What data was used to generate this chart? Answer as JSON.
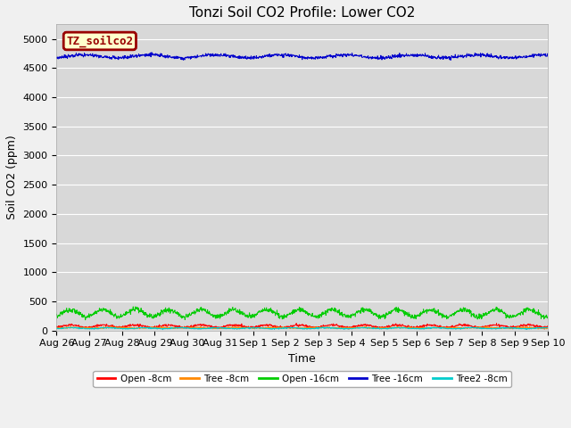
{
  "title": "Tonzi Soil CO2 Profile: Lower CO2",
  "xlabel": "Time",
  "ylabel": "Soil CO2 (ppm)",
  "ylim": [
    0,
    5250
  ],
  "yticks": [
    0,
    500,
    1000,
    1500,
    2000,
    2500,
    3000,
    3500,
    4000,
    4500,
    5000
  ],
  "background_color": "#f0f0f0",
  "plot_bg_color": "#d8d8d8",
  "legend_label": "TZ_soilco2",
  "legend_bg": "#ffffcc",
  "legend_border": "#990000",
  "series": {
    "open_8cm": {
      "label": "Open -8cm",
      "color": "#ff0000"
    },
    "tree_8cm": {
      "label": "Tree -8cm",
      "color": "#ff8800"
    },
    "open_16cm": {
      "label": "Open -16cm",
      "color": "#00cc00"
    },
    "tree_16cm": {
      "label": "Tree -16cm",
      "color": "#0000cc"
    },
    "tree2_8cm": {
      "label": "Tree2 -8cm",
      "color": "#00cccc"
    }
  },
  "xtick_labels": [
    "Aug 26",
    "Aug 27",
    "Aug 28",
    "Aug 29",
    "Aug 30",
    "Aug 31",
    "Sep 1",
    "Sep 2",
    "Sep 3",
    "Sep 4",
    "Sep 5",
    "Sep 6",
    "Sep 7",
    "Sep 8",
    "Sep 9",
    "Sep 10"
  ],
  "title_fontsize": 11,
  "axis_label_fontsize": 9,
  "tick_fontsize": 8
}
